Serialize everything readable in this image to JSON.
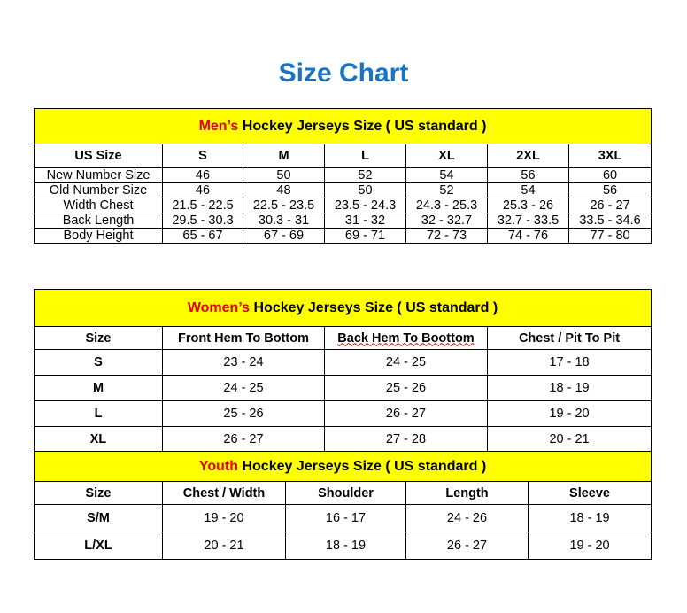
{
  "title": "Size Chart",
  "colors": {
    "title": "#1a73c0",
    "section_bg": "#ffff00",
    "highlight": "#e00000"
  },
  "men": {
    "heading_highlight": "Men’s",
    "heading_rest": " Hockey Jerseys Size ( US standard )",
    "headers": [
      "US Size",
      "S",
      "M",
      "L",
      "XL",
      "2XL",
      "3XL"
    ],
    "rows": [
      [
        "New Number Size",
        "46",
        "50",
        "52",
        "54",
        "56",
        "60"
      ],
      [
        "Old Number Size",
        "46",
        "48",
        "50",
        "52",
        "54",
        "56"
      ],
      [
        "Width Chest",
        "21.5 - 22.5",
        "22.5 - 23.5",
        "23.5 - 24.3",
        "24.3 - 25.3",
        "25.3 - 26",
        "26 - 27"
      ],
      [
        "Back Length",
        "29.5 - 30.3",
        "30.3 - 31",
        "31 - 32",
        "32 - 32.7",
        "32.7 - 33.5",
        "33.5 - 34.6"
      ],
      [
        "Body Height",
        "65 - 67",
        "67 - 69",
        "69 - 71",
        "72 - 73",
        "74 - 76",
        "77 - 80"
      ]
    ]
  },
  "women": {
    "heading_highlight": "Women’s",
    "heading_rest": " Hockey Jerseys Size ( US standard )",
    "headers": [
      "Size",
      "Front Hem To Bottom",
      "Back Hem To Boottom",
      "Chest / Pit To Pit"
    ],
    "rows": [
      [
        "S",
        "23 - 24",
        "24 - 25",
        "17 - 18"
      ],
      [
        "M",
        "24 - 25",
        "25 - 26",
        "18 - 19"
      ],
      [
        "L",
        "25 - 26",
        "26 - 27",
        "19 - 20"
      ],
      [
        "XL",
        "26 - 27",
        "27 - 28",
        "20 - 21"
      ]
    ]
  },
  "youth": {
    "heading_highlight": "Youth",
    "heading_rest": " Hockey Jerseys Size ( US standard )",
    "headers": [
      "Size",
      "Chest / Width",
      "Shoulder",
      "Length",
      "Sleeve"
    ],
    "rows": [
      [
        "S/M",
        "19 - 20",
        "16 - 17",
        "24 - 26",
        "18 - 19"
      ],
      [
        "L/XL",
        "20 - 21",
        "18 - 19",
        "26 - 27",
        "19 - 20"
      ]
    ]
  }
}
